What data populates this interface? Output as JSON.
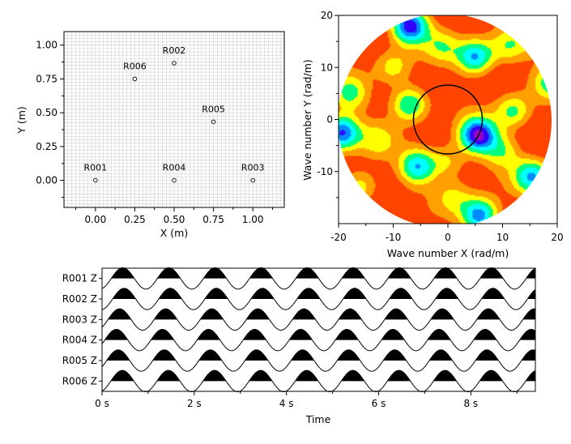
{
  "chart_data": [
    {
      "type": "scatter",
      "title": "",
      "xlabel": "X (m)",
      "ylabel": "Y (m)",
      "xlim": [
        -0.2,
        1.2
      ],
      "ylim": [
        -0.2,
        1.1
      ],
      "grid": true,
      "xticks": [
        0.0,
        0.25,
        0.5,
        0.75,
        1.0
      ],
      "xtick_labels": [
        "0.00",
        "0.25",
        "0.50",
        "0.75",
        "1.00"
      ],
      "yticks": [
        0.0,
        0.25,
        0.5,
        0.75,
        1.0
      ],
      "ytick_labels": [
        "0.00",
        "0.25",
        "0.50",
        "0.75",
        "1.00"
      ],
      "points": [
        {
          "label": "R001",
          "x": 0.0,
          "y": 0.0
        },
        {
          "label": "R002",
          "x": 0.5,
          "y": 0.866
        },
        {
          "label": "R003",
          "x": 1.0,
          "y": 0.0
        },
        {
          "label": "R004",
          "x": 0.5,
          "y": 0.0
        },
        {
          "label": "R005",
          "x": 0.75,
          "y": 0.433
        },
        {
          "label": "R006",
          "x": 0.25,
          "y": 0.75
        }
      ]
    },
    {
      "type": "heatmap",
      "title": "",
      "xlabel": "Wave number X (rad/m)",
      "ylabel": "Wave number Y (rad/m)",
      "xlim": [
        -20,
        20
      ],
      "ylim": [
        -20,
        20
      ],
      "xticks": [
        -20,
        -10,
        0,
        10,
        20
      ],
      "xtick_labels": [
        "-20",
        "-10",
        "0",
        "10",
        "20"
      ],
      "yticks": [
        -10,
        0,
        10,
        20
      ],
      "ytick_labels": [
        "-10",
        "0",
        "10",
        "20"
      ],
      "domain_radius": 20,
      "circle": {
        "cx": 0,
        "cy": 0,
        "r": 6.3
      },
      "colormap": [
        "#ff4400",
        "#ffa000",
        "#ffff00",
        "#00ff7f",
        "#00ffff",
        "#008cff",
        "#3200ff",
        "#9e00c8"
      ],
      "peaks": [
        {
          "kx": 5.5,
          "ky": -3.0,
          "level": 7.0
        },
        {
          "kx": -19.5,
          "ky": -2.5,
          "level": 6.5
        },
        {
          "kx": 5.8,
          "ky": -18.5,
          "level": 6.0
        },
        {
          "kx": -7.0,
          "ky": 18.0,
          "level": 6.5
        },
        {
          "kx": 5.0,
          "ky": 12.0,
          "level": 5.5
        },
        {
          "kx": -7.0,
          "ky": 3.0,
          "level": 4.5
        },
        {
          "kx": -5.5,
          "ky": -9.0,
          "level": 5.0
        },
        {
          "kx": 15.5,
          "ky": -11.0,
          "level": 5.0
        },
        {
          "kx": 12.0,
          "ky": 1.5,
          "level": 3.5
        },
        {
          "kx": 19.0,
          "ky": 7.0,
          "level": 3.2
        },
        {
          "kx": -18.0,
          "ky": 5.0,
          "level": 3.2
        },
        {
          "kx": -16.0,
          "ky": -13.0,
          "level": 3.0
        },
        {
          "kx": -10.0,
          "ky": 10.0,
          "level": 2.6
        },
        {
          "kx": 11.0,
          "ky": 14.0,
          "level": 2.8
        },
        {
          "kx": 0.0,
          "ky": -8.0,
          "level": 2.4
        },
        {
          "kx": 10.0,
          "ky": -6.0,
          "level": 2.6
        },
        {
          "kx": -1.0,
          "ky": 14.0,
          "level": 2.4
        },
        {
          "kx": 16.0,
          "ky": 16.0,
          "level": 2.0
        },
        {
          "kx": -13.0,
          "ky": -4.0,
          "level": 2.2
        },
        {
          "kx": 1.0,
          "ky": -15.0,
          "level": 2.2
        }
      ]
    },
    {
      "type": "line",
      "title": "",
      "xlabel": "Time",
      "ylabel": "",
      "xlim": [
        0,
        9.4
      ],
      "xticks": [
        0,
        2,
        4,
        6,
        8
      ],
      "xtick_labels": [
        "0 s",
        "2 s",
        "4 s",
        "6 s",
        "8 s"
      ],
      "frequency_hz": 1.0,
      "fill": "positive half-cycles filled black",
      "series": [
        {
          "name": "R001 Z",
          "phase_s": 0.2
        },
        {
          "name": "R002 Z",
          "phase_s": 0.23
        },
        {
          "name": "R003 Z",
          "phase_s": 0.13
        },
        {
          "name": "R004 Z",
          "phase_s": 0.06
        },
        {
          "name": "R005 Z",
          "phase_s": 0.1
        },
        {
          "name": "R006 Z",
          "phase_s": 0.19
        }
      ]
    }
  ]
}
